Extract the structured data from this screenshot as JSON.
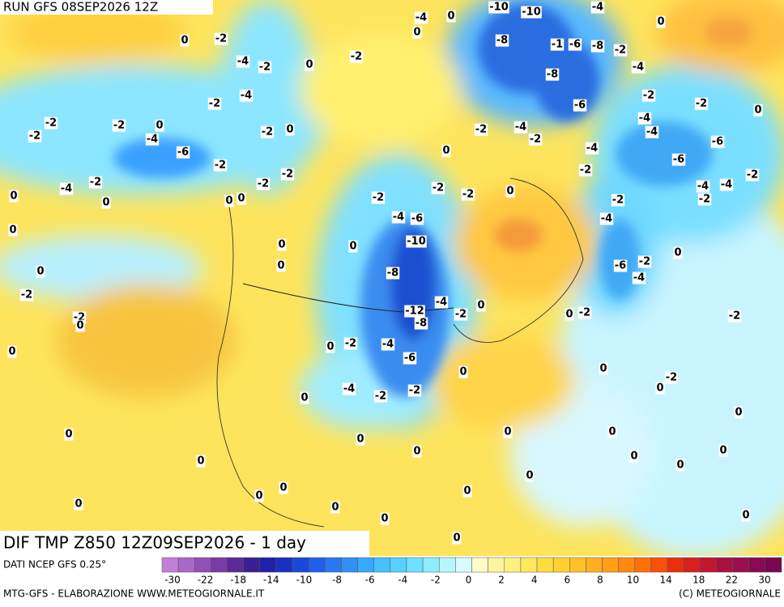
{
  "header": {
    "run": "RUN GFS 08SEP2026 12Z",
    "title": "DIF TMP Z850 12Z09SEP2026 - 1 day"
  },
  "source": "DATI NCEP GFS 0.25°",
  "footer": {
    "left": "MTG-GFS - ELABORAZIONE WWW.METEOGIORNALE.IT",
    "right": "(C) METEOGIORNALE"
  },
  "colorbar": {
    "colors": [
      "#c080d8",
      "#a868c8",
      "#9050b8",
      "#7a3aa8",
      "#5a2a98",
      "#3a2090",
      "#2020a8",
      "#1a30c0",
      "#1a48d8",
      "#2060e8",
      "#2878f0",
      "#3090f5",
      "#38a8f8",
      "#48c0fa",
      "#58d0fc",
      "#70e0ff",
      "#90ecff",
      "#b8f6ff",
      "#d8fcff",
      "#fffcc8",
      "#fff4a0",
      "#fff080",
      "#ffe860",
      "#ffdc40",
      "#ffd030",
      "#ffc028",
      "#ffb020",
      "#ffa018",
      "#ff8810",
      "#ff7008",
      "#f85008",
      "#e83010",
      "#d82020",
      "#c01830",
      "#a81040",
      "#981050",
      "#880a50",
      "#780850"
    ],
    "labels": [
      -30,
      -22,
      -18,
      -14,
      -10,
      -8,
      -6,
      -4,
      -2,
      0,
      2,
      4,
      6,
      8,
      10,
      14,
      18,
      22,
      30
    ]
  },
  "contour_labels": [
    -4,
    0,
    -10,
    -10,
    -4,
    0,
    0,
    -2,
    0,
    -8,
    -1,
    -6,
    -8,
    -2,
    -4,
    -2,
    0,
    -2,
    -4,
    -8,
    -4,
    -2,
    -2,
    -2,
    0,
    -6,
    -2,
    -2,
    -2,
    0,
    -4,
    -2,
    0,
    -2,
    -4,
    -2,
    -4,
    -4,
    -6,
    -6,
    0,
    -4,
    -6,
    -2,
    -2,
    -2,
    -2,
    -4,
    -2,
    0,
    0,
    -2,
    0,
    0,
    -2,
    -2,
    -2,
    0,
    -2,
    -4,
    -4,
    -2,
    -4,
    -6,
    -4,
    0,
    -10,
    0,
    0,
    0,
    0,
    -6,
    -2,
    0,
    -8,
    -4,
    -2,
    -4,
    -12,
    -2,
    0,
    -2,
    0,
    -8,
    0,
    -2,
    -2,
    0,
    0,
    -2,
    -4,
    -6,
    0,
    0,
    -2,
    0,
    -4,
    -2,
    -2,
    0,
    0,
    0,
    0,
    0,
    0,
    0,
    0,
    0,
    0,
    0,
    0,
    0,
    0,
    0,
    0,
    0,
    0,
    0,
    0,
    0
  ]
}
